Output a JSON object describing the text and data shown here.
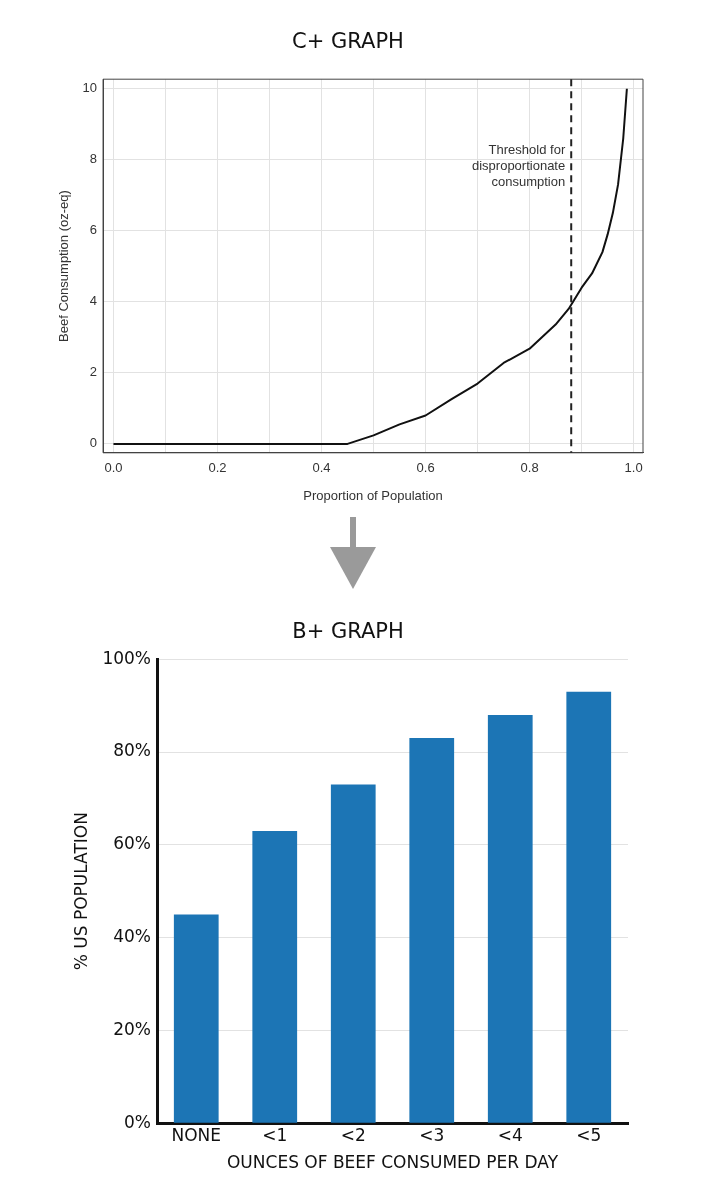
{
  "chart_data": [
    {
      "type": "line",
      "title": "C+ GRAPH",
      "xlabel": "Proportion of Population",
      "ylabel": "Beef Consumption (oz-eq)",
      "x": [
        0,
        0.45,
        0.5,
        0.55,
        0.6,
        0.65,
        0.7,
        0.75,
        0.8,
        0.85,
        0.875,
        0.9,
        0.92,
        0.94,
        0.95,
        0.96,
        0.97,
        0.98,
        0.987
      ],
      "series": [
        {
          "color": "#111111",
          "values": [
            0,
            0,
            0.24,
            0.55,
            0.8,
            1.26,
            1.7,
            2.28,
            2.68,
            3.36,
            3.8,
            4.4,
            4.8,
            5.4,
            5.9,
            6.5,
            7.3,
            8.6,
            10
          ]
        }
      ],
      "xlim": [
        -0.02,
        1.018
      ],
      "ylim": [
        -0.25,
        10.27
      ],
      "xticks": [
        {
          "value": 0,
          "label": "0.0"
        },
        {
          "value": 0.1,
          "label": null
        },
        {
          "value": 0.2,
          "label": "0.2"
        },
        {
          "value": 0.3,
          "label": null
        },
        {
          "value": 0.4,
          "label": "0.4"
        },
        {
          "value": 0.5,
          "label": null
        },
        {
          "value": 0.6,
          "label": "0.6"
        },
        {
          "value": 0.7,
          "label": null
        },
        {
          "value": 0.8,
          "label": "0.8"
        },
        {
          "value": 0.9,
          "label": null
        },
        {
          "value": 1,
          "label": "1.0"
        }
      ],
      "yticks": [
        0,
        2,
        4,
        6,
        8,
        10
      ],
      "ref_lines": [
        {
          "axis": "x",
          "value": 0.88,
          "label": "Threshold for disproportionate consumption",
          "line_style": "dashed",
          "color": "#222222"
        }
      ],
      "grid": true,
      "legend": false,
      "marker": "none",
      "line_style": "solid"
    },
    {
      "type": "bar",
      "title": "B+ GRAPH",
      "xlabel": "OUNCES OF BEEF CONSUMED PER DAY",
      "ylabel": "% US POPULATION",
      "categories": [
        "NONE",
        "<1",
        "<2",
        "<3",
        "<4",
        "<5"
      ],
      "values": [
        45,
        63,
        73,
        83,
        88,
        93
      ],
      "color": "#1c75b5",
      "ylim": [
        0,
        100
      ],
      "yticks": [
        {
          "value": 0,
          "label": "0%"
        },
        {
          "value": 20,
          "label": "20%"
        },
        {
          "value": 40,
          "label": "40%"
        },
        {
          "value": 60,
          "label": "60%"
        },
        {
          "value": 80,
          "label": "80%"
        },
        {
          "value": 100,
          "label": "100%"
        }
      ],
      "grid": "y",
      "legend": false
    }
  ]
}
